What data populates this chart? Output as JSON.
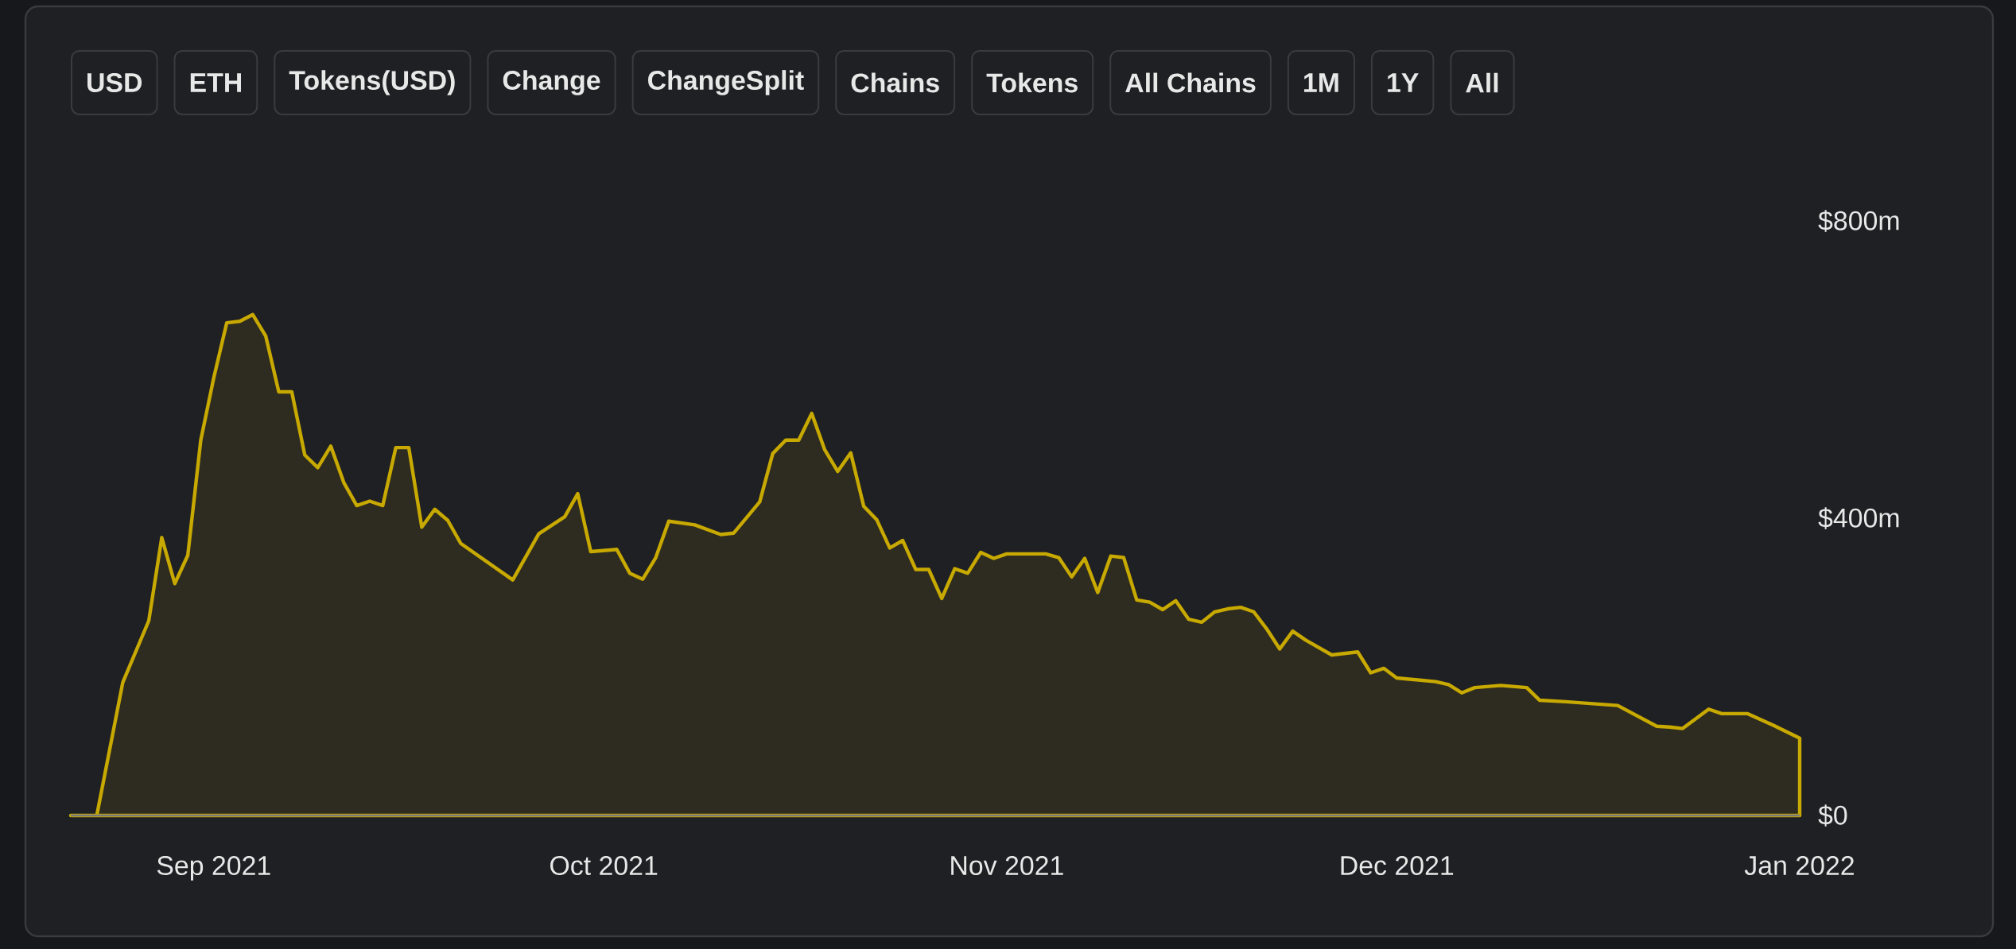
{
  "chart_data": {
    "type": "area",
    "annotations": [
      "USD",
      "ETH",
      "Tokens(USD)",
      "Change",
      "ChangeSplit",
      "Chains",
      "Tokens",
      "All Chains",
      "1M",
      "1Y",
      "All"
    ],
    "x": [
      "2021-08-21",
      "2021-08-23",
      "2021-08-25",
      "2021-08-27",
      "2021-08-28",
      "2021-08-29",
      "2021-08-30",
      "2021-08-31",
      "2021-09-01",
      "2021-09-02",
      "2021-09-03",
      "2021-09-04",
      "2021-09-05",
      "2021-09-06",
      "2021-09-07",
      "2021-09-08",
      "2021-09-09",
      "2021-09-10",
      "2021-09-11",
      "2021-09-12",
      "2021-09-13",
      "2021-09-14",
      "2021-09-15",
      "2021-09-16",
      "2021-09-17",
      "2021-09-18",
      "2021-09-19",
      "2021-09-20",
      "2021-09-24",
      "2021-09-26",
      "2021-09-28",
      "2021-09-29",
      "2021-09-30",
      "2021-10-02",
      "2021-10-03",
      "2021-10-04",
      "2021-10-05",
      "2021-10-06",
      "2021-10-08",
      "2021-10-10",
      "2021-10-11",
      "2021-10-13",
      "2021-10-14",
      "2021-10-15",
      "2021-10-16",
      "2021-10-17",
      "2021-10-18",
      "2021-10-19",
      "2021-10-20",
      "2021-10-21",
      "2021-10-22",
      "2021-10-23",
      "2021-10-24",
      "2021-10-25",
      "2021-10-26",
      "2021-10-27",
      "2021-10-28",
      "2021-10-29",
      "2021-10-30",
      "2021-10-31",
      "2021-11-01",
      "2021-11-04",
      "2021-11-05",
      "2021-11-06",
      "2021-11-07",
      "2021-11-08",
      "2021-11-09",
      "2021-11-10",
      "2021-11-11",
      "2021-11-12",
      "2021-11-13",
      "2021-11-14",
      "2021-11-15",
      "2021-11-16",
      "2021-11-17",
      "2021-11-18",
      "2021-11-19",
      "2021-11-20",
      "2021-11-21",
      "2021-11-22",
      "2021-11-23",
      "2021-11-24",
      "2021-11-26",
      "2021-11-28",
      "2021-11-29",
      "2021-11-30",
      "2021-12-01",
      "2021-12-04",
      "2021-12-05",
      "2021-12-06",
      "2021-12-07",
      "2021-12-09",
      "2021-12-11",
      "2021-12-12",
      "2021-12-14",
      "2021-12-18",
      "2021-12-21",
      "2021-12-22",
      "2021-12-23",
      "2021-12-25",
      "2021-12-26",
      "2021-12-28",
      "2021-12-30",
      "2022-01-01"
    ],
    "values": [
      0,
      0,
      179,
      262,
      374,
      312,
      350,
      505,
      589,
      663,
      665,
      674,
      645,
      570,
      570,
      485,
      468,
      497,
      448,
      417,
      423,
      417,
      495,
      495,
      388,
      412,
      397,
      366,
      317,
      379,
      402,
      433,
      355,
      358,
      326,
      318,
      347,
      396,
      391,
      378,
      380,
      422,
      487,
      505,
      505,
      541,
      492,
      463,
      488,
      416,
      398,
      360,
      370,
      331,
      331,
      292,
      332,
      326,
      354,
      346,
      352,
      352,
      347,
      321,
      346,
      300,
      349,
      347,
      290,
      287,
      277,
      289,
      264,
      260,
      274,
      278,
      280,
      274,
      251,
      224,
      248,
      236,
      216,
      220,
      192,
      198,
      185,
      180,
      176,
      165,
      172,
      175,
      172,
      155,
      153,
      148,
      120,
      119,
      117,
      143,
      137,
      137,
      121,
      104
    ],
    "color": "#c8a900",
    "xticks": [
      {
        "value": "2021-09-01",
        "label": "Sep 2021"
      },
      {
        "value": "2021-10-01",
        "label": "Oct 2021"
      },
      {
        "value": "2021-11-01",
        "label": "Nov 2021"
      },
      {
        "value": "2021-12-01",
        "label": "Dec 2021"
      },
      {
        "value": "2022-01-01",
        "label": "Jan 2022"
      }
    ],
    "xlim": [
      "2021-08-21",
      "2022-01-01"
    ],
    "ylim": [
      0,
      800
    ],
    "yticks": [
      {
        "value": 0,
        "label": "$0"
      },
      {
        "value": 400,
        "label": "$400m"
      },
      {
        "value": 800,
        "label": "$800m"
      }
    ]
  }
}
